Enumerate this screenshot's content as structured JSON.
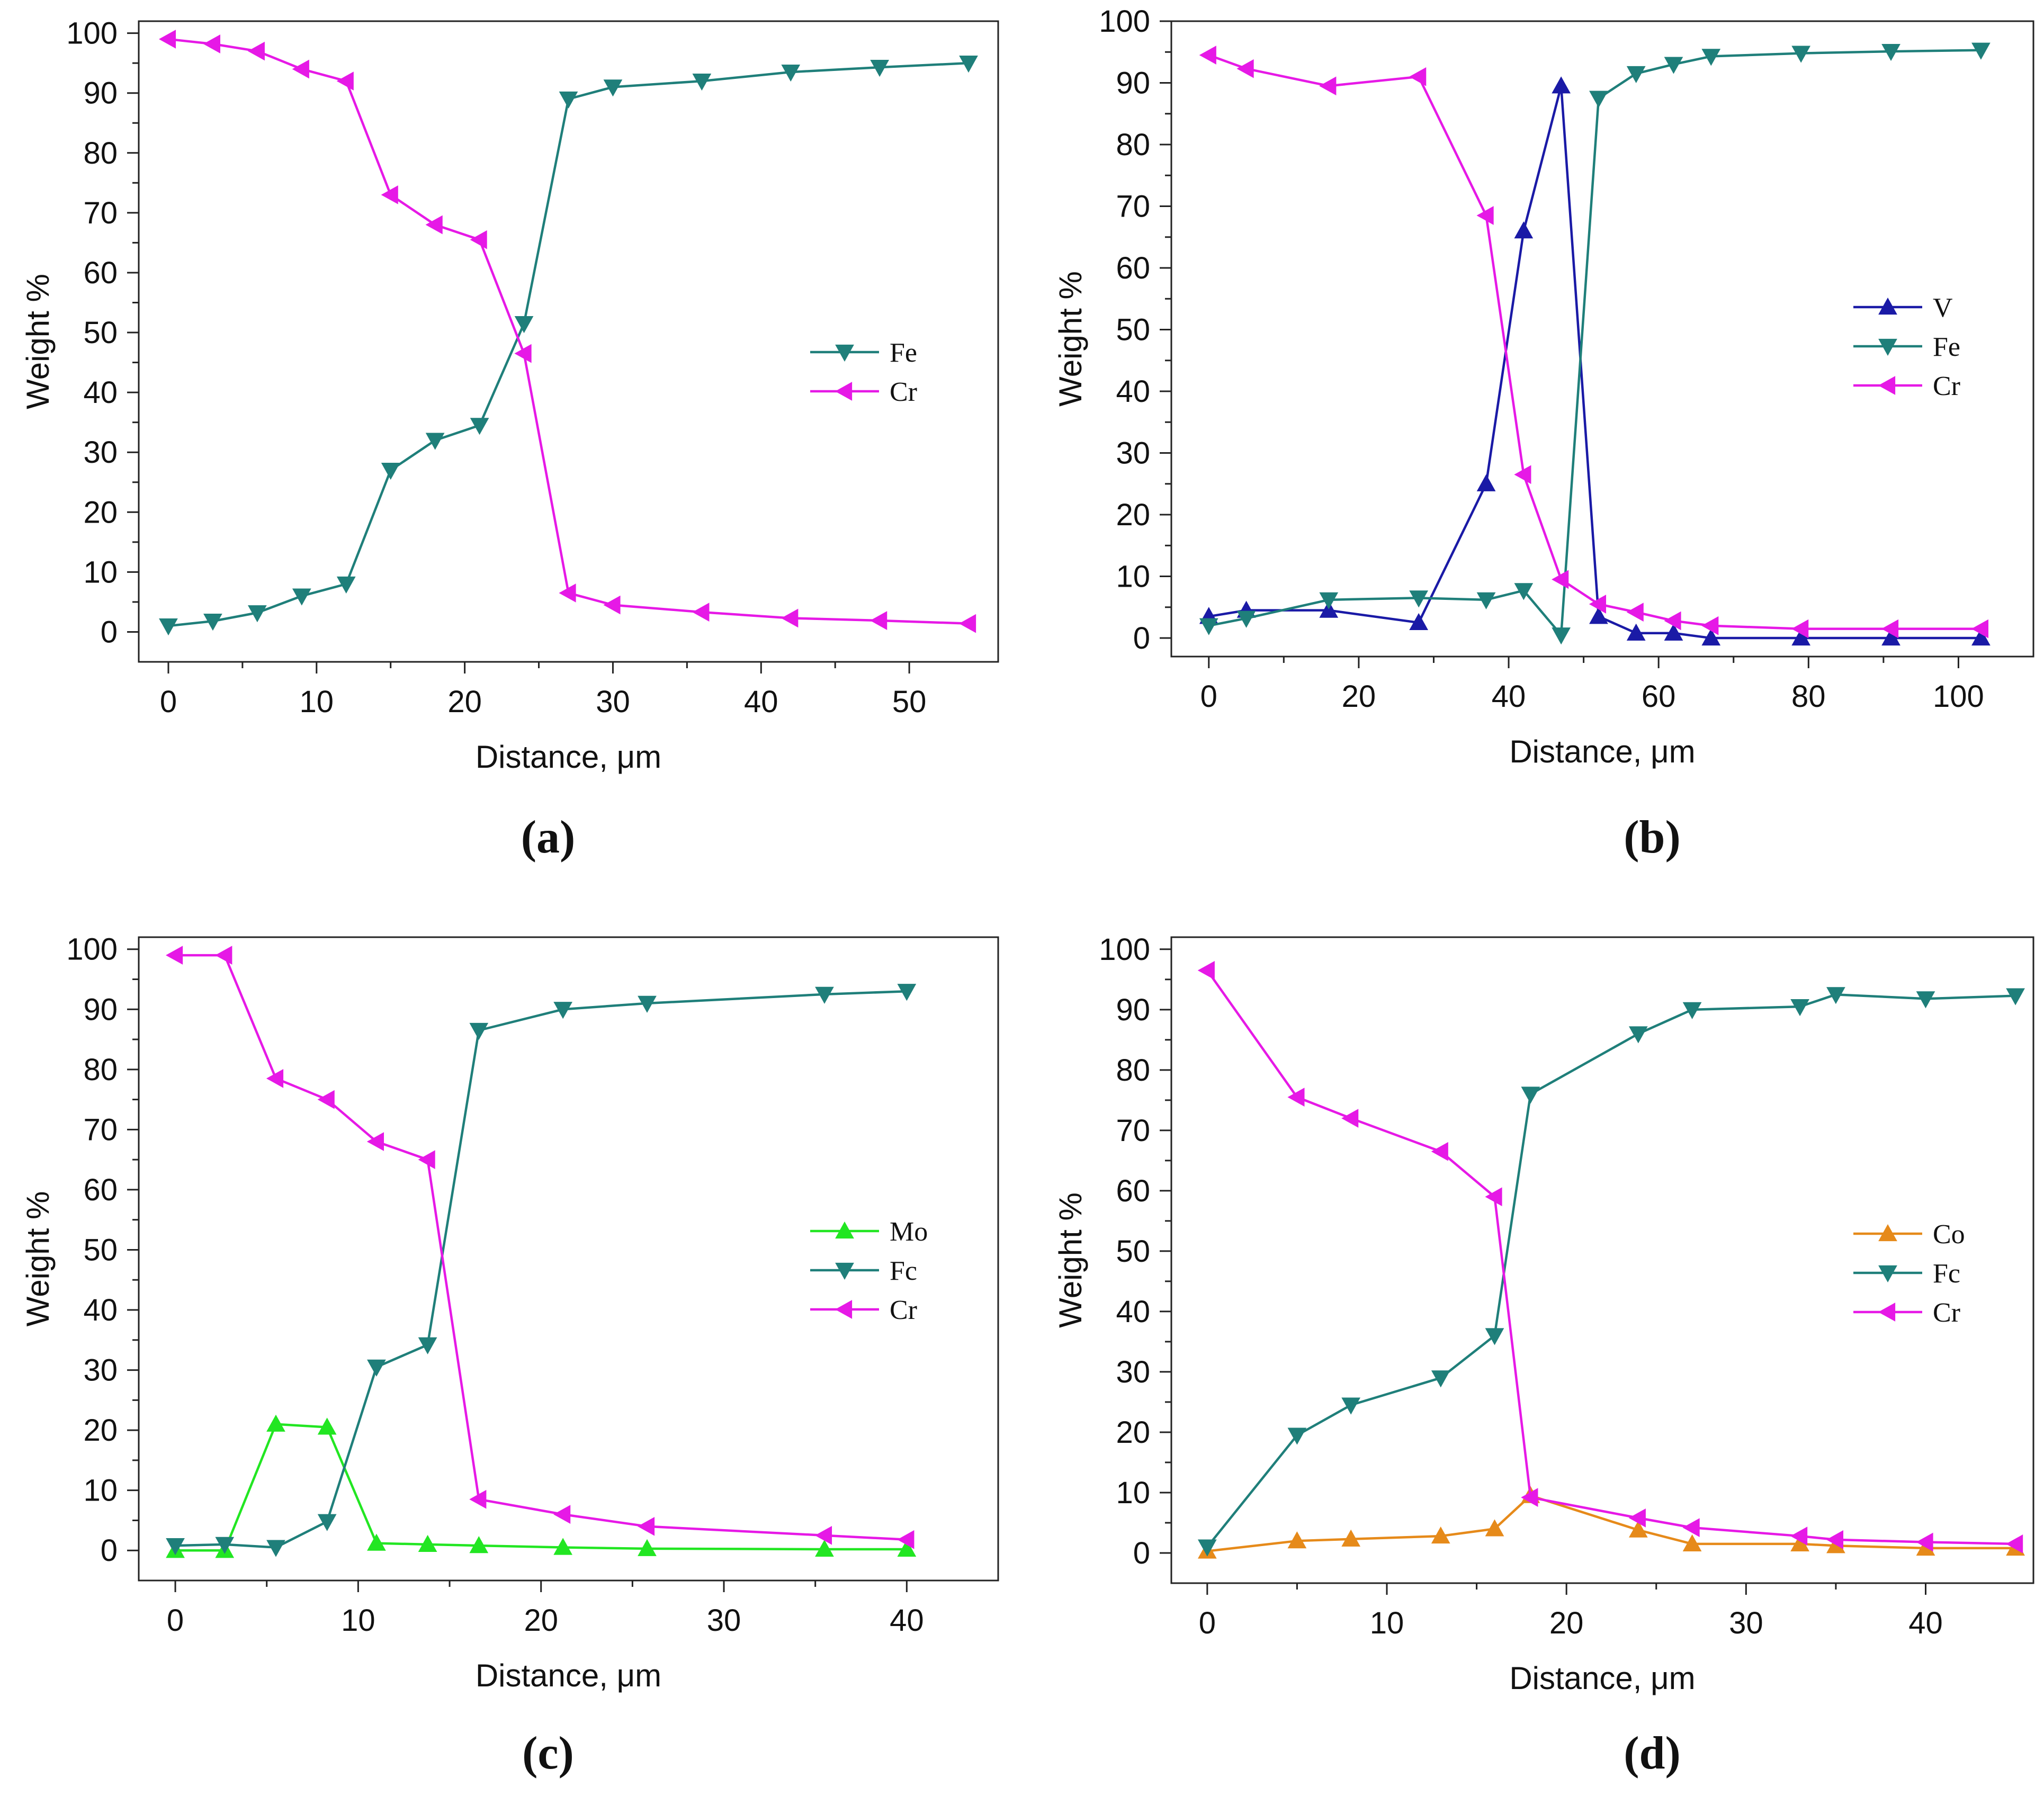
{
  "colors": {
    "V": "#1a1aa6",
    "Fe": "#1f7f7a",
    "Cr": "#e619e6",
    "Mo": "#22e622",
    "Co": "#e68a1a"
  },
  "chart_data": [
    {
      "type": "line",
      "panel": "(a)",
      "xlabel_prefix": "Distance, ",
      "xlabel_unit": "μm",
      "ylabel": "Weight %",
      "xlim": [
        -2,
        56
      ],
      "ylim": [
        -5,
        102
      ],
      "xticks": [
        0,
        10,
        20,
        30,
        40,
        50
      ],
      "yticks": [
        0,
        10,
        20,
        30,
        40,
        50,
        60,
        70,
        80,
        90,
        100
      ],
      "legend": "right-middle",
      "series": [
        {
          "name": "Fe",
          "marker": "triangle-down",
          "x": [
            0,
            3,
            6,
            9,
            12,
            15,
            18,
            21,
            24,
            27,
            30,
            36,
            42,
            48,
            54
          ],
          "y": [
            1,
            1.8,
            3.2,
            6,
            8,
            27,
            32,
            34.5,
            51.5,
            89,
            91,
            92,
            93.5,
            94.3,
            95
          ]
        },
        {
          "name": "Cr",
          "marker": "triangle-left",
          "x": [
            0,
            3,
            6,
            9,
            12,
            15,
            18,
            21,
            24,
            27,
            30,
            36,
            42,
            48,
            54
          ],
          "y": [
            99,
            98.2,
            97,
            94,
            92,
            73,
            68,
            65.5,
            46.5,
            6.5,
            4.5,
            3.3,
            2.3,
            1.9,
            1.4
          ]
        }
      ]
    },
    {
      "type": "line",
      "panel": "(b)",
      "xlabel_prefix": "Distance, ",
      "xlabel_unit": "μm",
      "ylabel": "Weight %",
      "xlim": [
        -5,
        110
      ],
      "ylim": [
        -3,
        100
      ],
      "xticks": [
        0,
        20,
        40,
        60,
        80,
        100
      ],
      "yticks": [
        0,
        10,
        20,
        30,
        40,
        50,
        60,
        70,
        80,
        90,
        100
      ],
      "legend": "right-middle",
      "series": [
        {
          "name": "V",
          "marker": "triangle-up",
          "x": [
            0,
            5,
            16,
            28,
            37,
            42,
            47,
            52,
            57,
            62,
            67,
            79,
            91,
            103
          ],
          "y": [
            3.5,
            4.5,
            4.5,
            2.5,
            25,
            66,
            89.5,
            3.5,
            0.8,
            0.8,
            0,
            0,
            0,
            0
          ]
        },
        {
          "name": "Fe",
          "marker": "triangle-down",
          "x": [
            0,
            5,
            16,
            28,
            37,
            42,
            47,
            52,
            57,
            62,
            67,
            79,
            91,
            103
          ],
          "y": [
            2,
            3.2,
            6.2,
            6.5,
            6.2,
            7.7,
            0.5,
            87.5,
            91.5,
            93,
            94.3,
            94.8,
            95.1,
            95.3
          ]
        },
        {
          "name": "Cr",
          "marker": "triangle-left",
          "x": [
            0,
            5,
            16,
            28,
            37,
            42,
            47,
            52,
            57,
            62,
            67,
            79,
            91,
            103
          ],
          "y": [
            94.5,
            92.3,
            89.5,
            91,
            68.5,
            26.5,
            9.5,
            5.5,
            4.2,
            2.8,
            2,
            1.5,
            1.5,
            1.5
          ]
        }
      ]
    },
    {
      "type": "line",
      "panel": "(c)",
      "xlabel_prefix": "Distance, ",
      "xlabel_unit": "μm",
      "ylabel": "Weight %",
      "xlim": [
        -2,
        45
      ],
      "ylim": [
        -5,
        102
      ],
      "xticks": [
        0,
        10,
        20,
        30,
        40
      ],
      "yticks": [
        0,
        10,
        20,
        30,
        40,
        50,
        60,
        70,
        80,
        90,
        100
      ],
      "legend": "right-middle",
      "series": [
        {
          "name": "Mo",
          "marker": "triangle-up",
          "x": [
            0,
            2.7,
            5.5,
            8.3,
            11,
            13.8,
            16.6,
            21.2,
            25.8,
            35.5,
            40
          ],
          "y": [
            0,
            0,
            21,
            20.5,
            1.2,
            1,
            0.8,
            0.5,
            0.3,
            0.2,
            0.2
          ]
        },
        {
          "name": "Fc",
          "marker": "triangle-down",
          "x": [
            0,
            2.7,
            5.5,
            8.3,
            11,
            13.8,
            16.6,
            21.2,
            25.8,
            35.5,
            40
          ],
          "y": [
            0.8,
            1,
            0.5,
            4.8,
            30.5,
            34.2,
            86.5,
            90,
            91,
            92.5,
            93
          ]
        },
        {
          "name": "Cr",
          "marker": "triangle-left",
          "x": [
            0,
            2.7,
            5.5,
            8.3,
            11,
            13.8,
            16.6,
            21.2,
            25.8,
            35.5,
            40
          ],
          "y": [
            99,
            99,
            78.5,
            75,
            68,
            65,
            8.5,
            6,
            4,
            2.5,
            1.8
          ]
        }
      ]
    },
    {
      "type": "line",
      "panel": "(d)",
      "xlabel_prefix": "Distance, ",
      "xlabel_unit": "μm",
      "ylabel": "Weight %",
      "xlim": [
        -2,
        46
      ],
      "ylim": [
        -5,
        102
      ],
      "xticks": [
        0,
        10,
        20,
        30,
        40
      ],
      "yticks": [
        0,
        10,
        20,
        30,
        40,
        50,
        60,
        70,
        80,
        90,
        100
      ],
      "legend": "right-middle",
      "series": [
        {
          "name": "Co",
          "marker": "triangle-up",
          "x": [
            0,
            5,
            8,
            13,
            16,
            18,
            24,
            27,
            33,
            35,
            40,
            45
          ],
          "y": [
            0.3,
            2,
            2.3,
            2.8,
            4,
            9.5,
            3.8,
            1.5,
            1.5,
            1.2,
            0.8,
            0.8
          ]
        },
        {
          "name": "Fc",
          "marker": "triangle-down",
          "x": [
            0,
            5,
            8,
            13,
            16,
            18,
            24,
            27,
            33,
            35,
            40,
            45
          ],
          "y": [
            1,
            19.5,
            24.5,
            29,
            36,
            76,
            86,
            90,
            90.5,
            92.5,
            91.8,
            92.3
          ]
        },
        {
          "name": "Cr",
          "marker": "triangle-left",
          "x": [
            0,
            5,
            8,
            13,
            16,
            18,
            24,
            27,
            33,
            35,
            40,
            45
          ],
          "y": [
            96.5,
            75.5,
            72,
            66.5,
            59,
            9.2,
            5.8,
            4.2,
            2.8,
            2.2,
            1.8,
            1.5
          ]
        }
      ]
    }
  ]
}
